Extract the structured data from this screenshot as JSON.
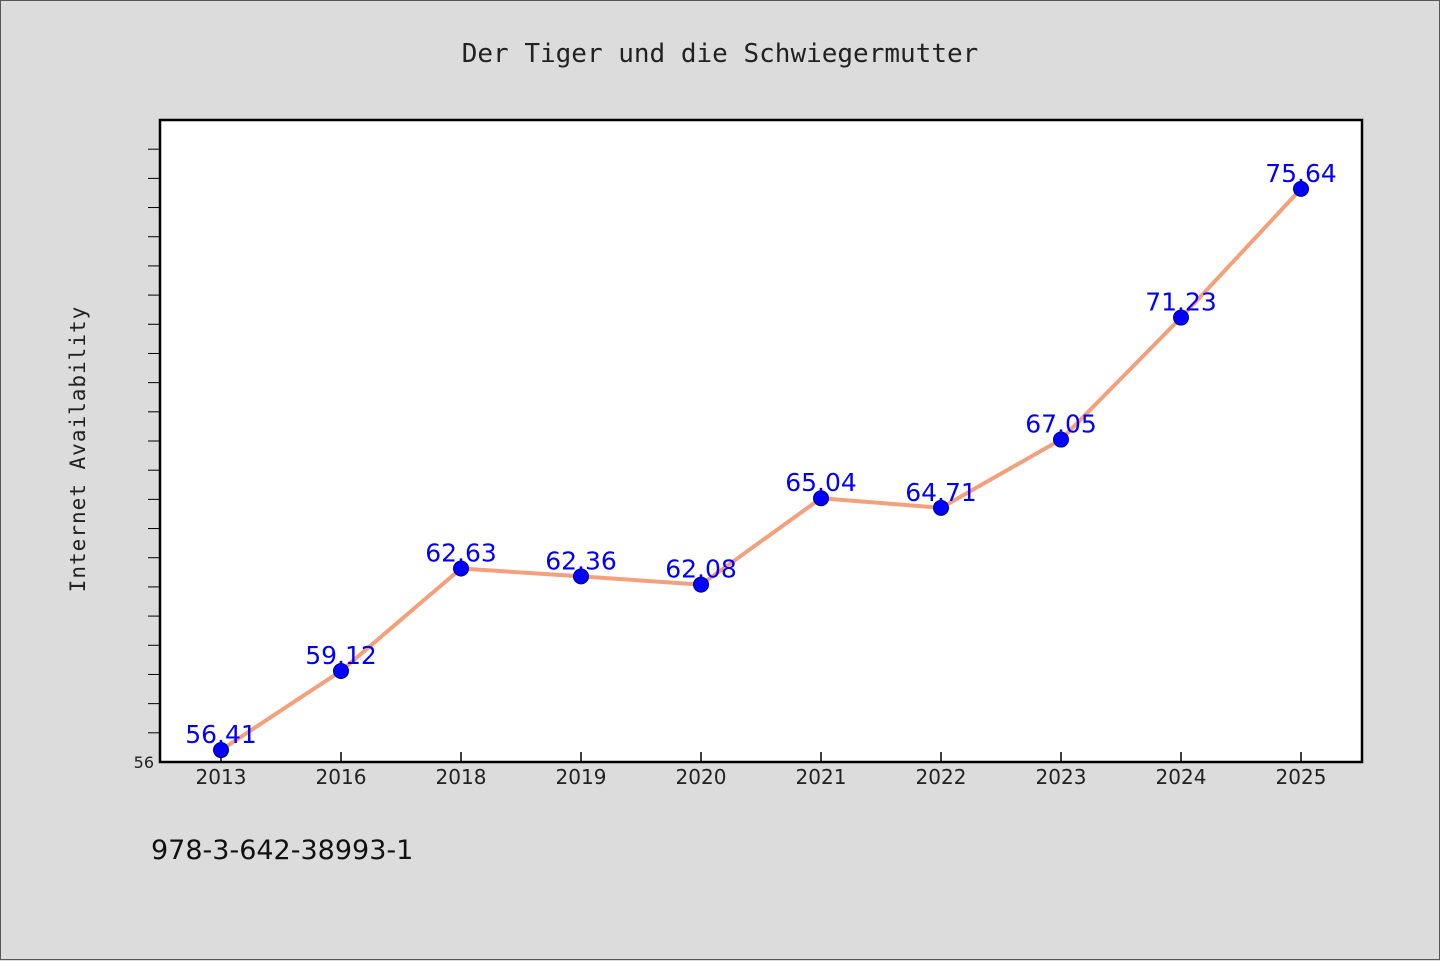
{
  "chart_data": {
    "type": "line",
    "title": "Der Tiger und die Schwiegermutter",
    "xlabel": "",
    "ylabel": "Internet Availability",
    "categories": [
      "2013",
      "2016",
      "2018",
      "2019",
      "2020",
      "2021",
      "2022",
      "2023",
      "2024",
      "2025"
    ],
    "series": [
      {
        "values": [
          56.41,
          59.12,
          62.63,
          62.36,
          62.08,
          65.04,
          64.71,
          67.05,
          71.23,
          75.64
        ]
      }
    ],
    "data_labels": [
      "56.41",
      "59.12",
      "62.63",
      "62.36",
      "62.08",
      "65.04",
      "64.71",
      "67.05",
      "71.23",
      "75.64"
    ],
    "ylim": [
      56,
      78
    ],
    "yticks_labeled": [
      "56"
    ],
    "ytick_minor_step": 1,
    "grid": false,
    "legend": "none",
    "colors": {
      "line": "#f4a07a",
      "marker": "#0000ff",
      "data_label": "#0000ff",
      "plot_background": "#ffffff",
      "figure_background": "#dcdcdc"
    }
  },
  "footer_text": "978-3-642-38993-1"
}
